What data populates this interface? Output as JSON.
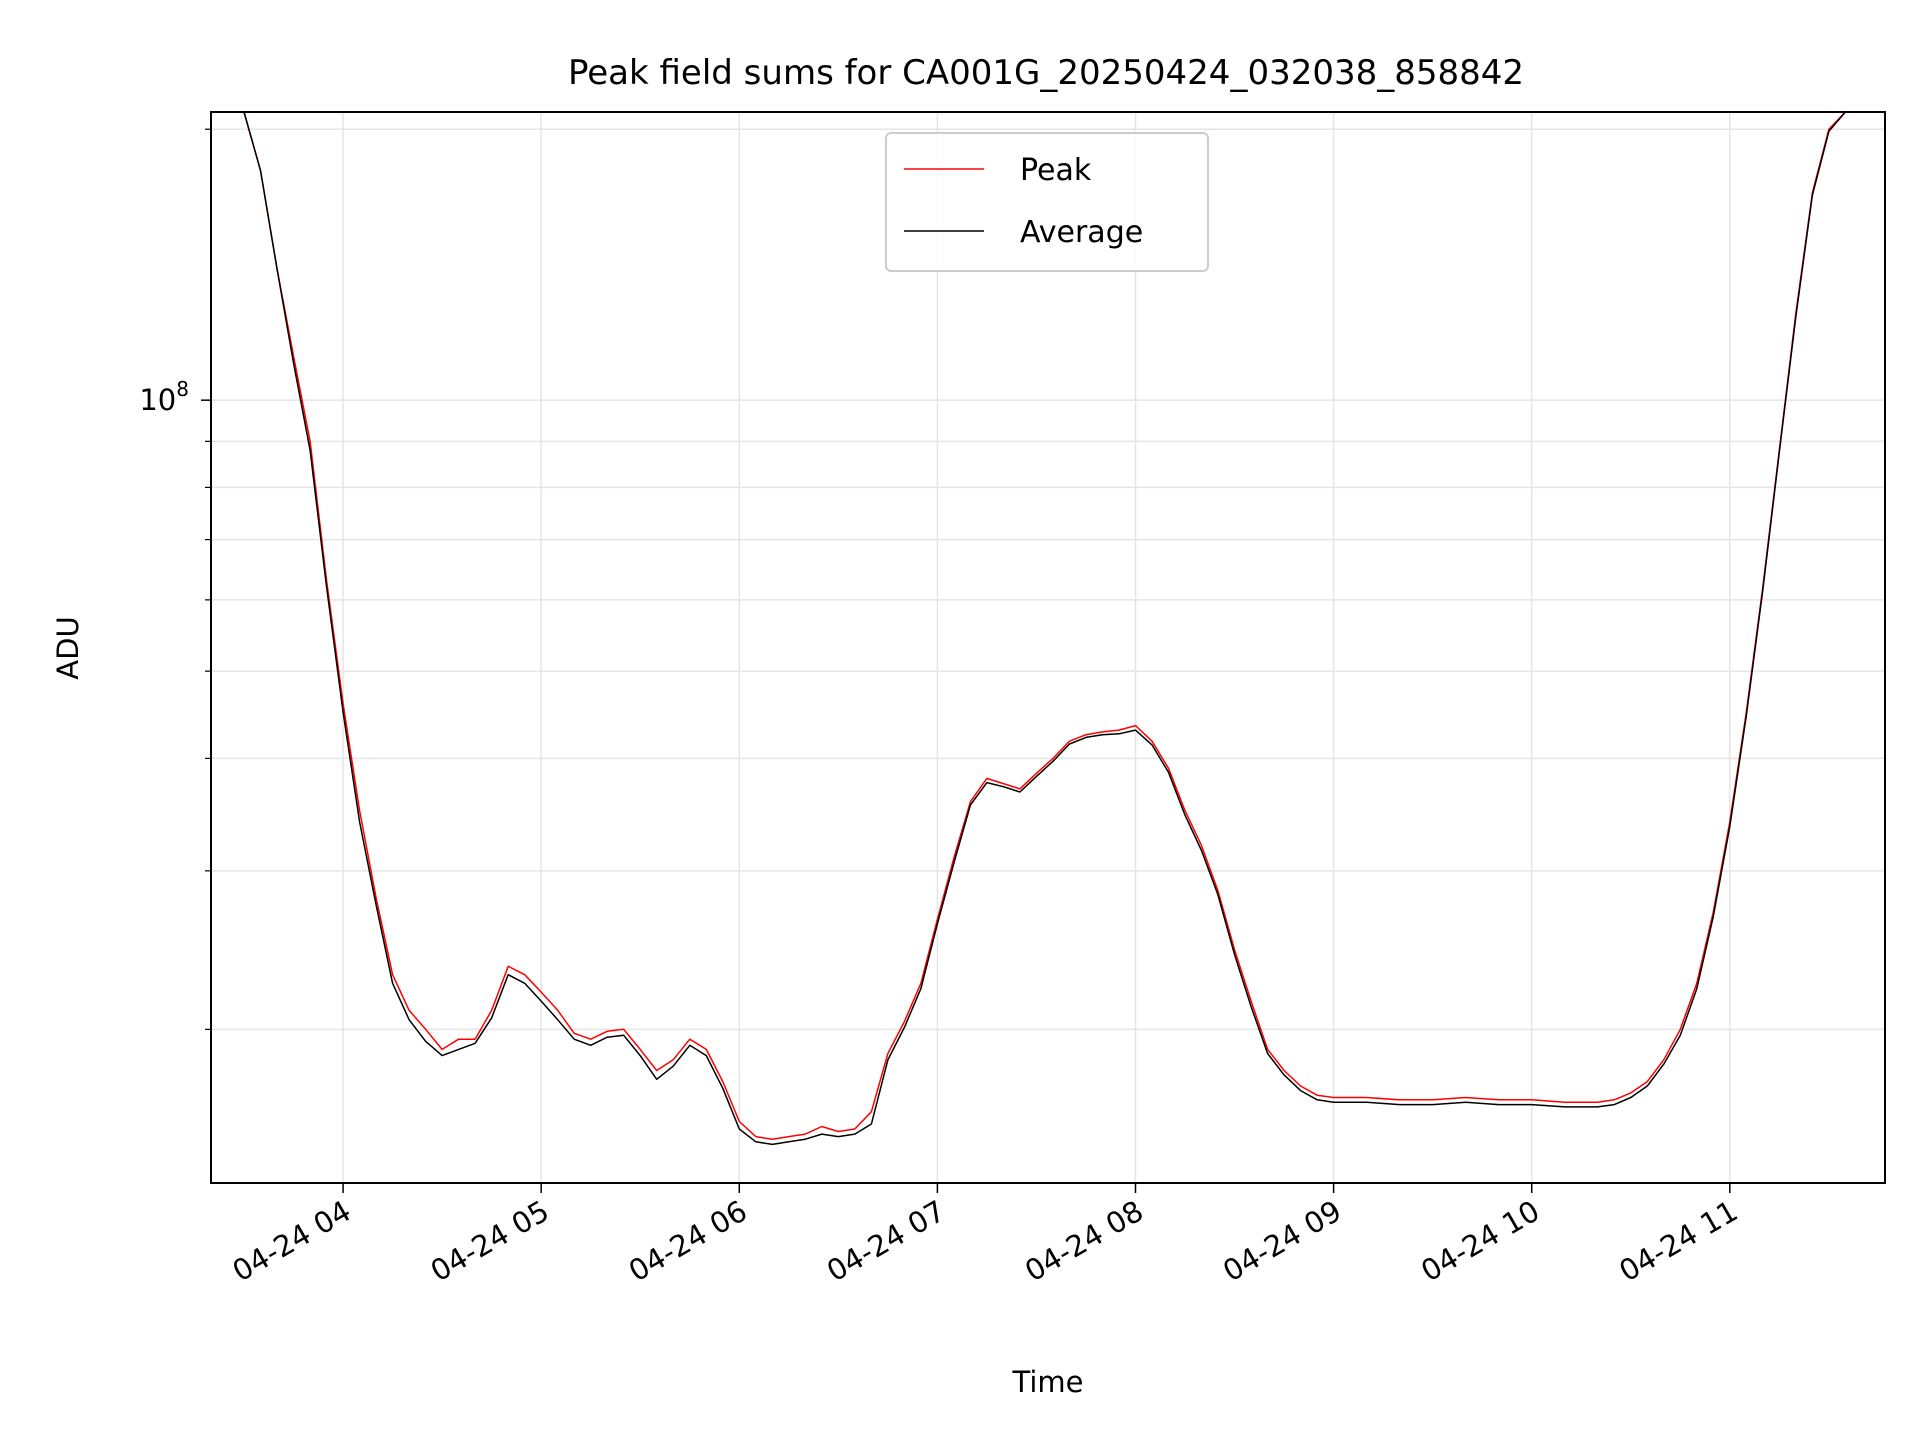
{
  "chart_data": {
    "type": "line",
    "title": "Peak field sums for CA001G_20250424_032038_858842",
    "xlabel": "Time",
    "ylabel": "ADU",
    "y_scale": "log",
    "grid": true,
    "legend_position": "top-center",
    "xlim": [
      "2025-04-24 03:20",
      "2025-04-24 11:47"
    ],
    "ylim": [
      13500000,
      209000000
    ],
    "x_ticks": [
      {
        "value": "2025-04-24 04:00",
        "label": "04-24 04"
      },
      {
        "value": "2025-04-24 05:00",
        "label": "04-24 05"
      },
      {
        "value": "2025-04-24 06:00",
        "label": "04-24 06"
      },
      {
        "value": "2025-04-24 07:00",
        "label": "04-24 07"
      },
      {
        "value": "2025-04-24 08:00",
        "label": "04-24 08"
      },
      {
        "value": "2025-04-24 09:00",
        "label": "04-24 09"
      },
      {
        "value": "2025-04-24 10:00",
        "label": "04-24 10"
      },
      {
        "value": "2025-04-24 11:00",
        "label": "04-24 11"
      }
    ],
    "y_major_ticks": [
      {
        "value": 100000000,
        "base": "10",
        "exp": "8"
      }
    ],
    "y_minor_ticks": [
      20000000,
      30000000,
      40000000,
      50000000,
      60000000,
      70000000,
      80000000,
      90000000,
      200000000
    ],
    "series": [
      {
        "name": "Peak",
        "color": "#ff0000",
        "x": [
          "2025-04-24 03:20",
          "2025-04-24 03:30",
          "2025-04-24 03:35",
          "2025-04-24 03:40",
          "2025-04-24 03:45",
          "2025-04-24 03:50",
          "2025-04-24 03:55",
          "2025-04-24 04:00",
          "2025-04-24 04:05",
          "2025-04-24 04:10",
          "2025-04-24 04:15",
          "2025-04-24 04:20",
          "2025-04-24 04:25",
          "2025-04-24 04:30",
          "2025-04-24 04:35",
          "2025-04-24 04:40",
          "2025-04-24 04:45",
          "2025-04-24 04:50",
          "2025-04-24 04:55",
          "2025-04-24 05:00",
          "2025-04-24 05:05",
          "2025-04-24 05:10",
          "2025-04-24 05:15",
          "2025-04-24 05:20",
          "2025-04-24 05:25",
          "2025-04-24 05:30",
          "2025-04-24 05:35",
          "2025-04-24 05:40",
          "2025-04-24 05:45",
          "2025-04-24 05:50",
          "2025-04-24 05:55",
          "2025-04-24 06:00",
          "2025-04-24 06:05",
          "2025-04-24 06:10",
          "2025-04-24 06:15",
          "2025-04-24 06:20",
          "2025-04-24 06:25",
          "2025-04-24 06:30",
          "2025-04-24 06:35",
          "2025-04-24 06:40",
          "2025-04-24 06:45",
          "2025-04-24 06:50",
          "2025-04-24 06:55",
          "2025-04-24 07:00",
          "2025-04-24 07:05",
          "2025-04-24 07:10",
          "2025-04-24 07:15",
          "2025-04-24 07:20",
          "2025-04-24 07:25",
          "2025-04-24 07:30",
          "2025-04-24 07:35",
          "2025-04-24 07:40",
          "2025-04-24 07:45",
          "2025-04-24 07:50",
          "2025-04-24 07:55",
          "2025-04-24 08:00",
          "2025-04-24 08:05",
          "2025-04-24 08:10",
          "2025-04-24 08:15",
          "2025-04-24 08:20",
          "2025-04-24 08:25",
          "2025-04-24 08:30",
          "2025-04-24 08:35",
          "2025-04-24 08:40",
          "2025-04-24 08:45",
          "2025-04-24 08:50",
          "2025-04-24 08:55",
          "2025-04-24 09:00",
          "2025-04-24 09:10",
          "2025-04-24 09:20",
          "2025-04-24 09:30",
          "2025-04-24 09:40",
          "2025-04-24 09:50",
          "2025-04-24 10:00",
          "2025-04-24 10:10",
          "2025-04-24 10:15",
          "2025-04-24 10:20",
          "2025-04-24 10:25",
          "2025-04-24 10:30",
          "2025-04-24 10:35",
          "2025-04-24 10:40",
          "2025-04-24 10:45",
          "2025-04-24 10:50",
          "2025-04-24 10:55",
          "2025-04-24 11:00",
          "2025-04-24 11:05",
          "2025-04-24 11:10",
          "2025-04-24 11:15",
          "2025-04-24 11:20",
          "2025-04-24 11:25",
          "2025-04-24 11:30",
          "2025-04-24 11:35",
          "2025-04-24 11:40",
          "2025-04-24 11:47"
        ],
        "values": [
          209000000,
          209000000,
          180000000,
          140000000,
          112000000,
          90000000,
          63000000,
          46000000,
          35000000,
          28000000,
          23000000,
          21000000,
          20000000,
          19000000,
          19500000,
          19500000,
          21000000,
          23500000,
          23000000,
          22000000,
          21000000,
          19800000,
          19500000,
          19900000,
          20000000,
          19000000,
          18000000,
          18500000,
          19500000,
          19000000,
          17500000,
          15800000,
          15200000,
          15100000,
          15200000,
          15300000,
          15600000,
          15400000,
          15500000,
          16200000,
          18800000,
          20400000,
          22500000,
          26500000,
          31000000,
          35800000,
          38000000,
          37500000,
          37000000,
          38500000,
          40000000,
          41800000,
          42500000,
          42800000,
          43000000,
          43500000,
          41800000,
          39000000,
          35000000,
          32000000,
          28500000,
          24500000,
          21500000,
          19000000,
          18000000,
          17300000,
          16900000,
          16800000,
          16800000,
          16700000,
          16700000,
          16800000,
          16700000,
          16700000,
          16600000,
          16600000,
          16600000,
          16700000,
          17000000,
          17500000,
          18500000,
          20000000,
          22500000,
          27000000,
          34000000,
          45000000,
          62000000,
          88000000,
          125000000,
          170000000,
          200000000,
          209000000,
          209000000,
          209000000
        ]
      },
      {
        "name": "Average",
        "color": "#000000",
        "x": [
          "2025-04-24 03:20",
          "2025-04-24 03:30",
          "2025-04-24 03:35",
          "2025-04-24 03:40",
          "2025-04-24 03:45",
          "2025-04-24 03:50",
          "2025-04-24 03:55",
          "2025-04-24 04:00",
          "2025-04-24 04:05",
          "2025-04-24 04:10",
          "2025-04-24 04:15",
          "2025-04-24 04:20",
          "2025-04-24 04:25",
          "2025-04-24 04:30",
          "2025-04-24 04:35",
          "2025-04-24 04:40",
          "2025-04-24 04:45",
          "2025-04-24 04:50",
          "2025-04-24 04:55",
          "2025-04-24 05:00",
          "2025-04-24 05:05",
          "2025-04-24 05:10",
          "2025-04-24 05:15",
          "2025-04-24 05:20",
          "2025-04-24 05:25",
          "2025-04-24 05:30",
          "2025-04-24 05:35",
          "2025-04-24 05:40",
          "2025-04-24 05:45",
          "2025-04-24 05:50",
          "2025-04-24 05:55",
          "2025-04-24 06:00",
          "2025-04-24 06:05",
          "2025-04-24 06:10",
          "2025-04-24 06:15",
          "2025-04-24 06:20",
          "2025-04-24 06:25",
          "2025-04-24 06:30",
          "2025-04-24 06:35",
          "2025-04-24 06:40",
          "2025-04-24 06:45",
          "2025-04-24 06:50",
          "2025-04-24 06:55",
          "2025-04-24 07:00",
          "2025-04-24 07:05",
          "2025-04-24 07:10",
          "2025-04-24 07:15",
          "2025-04-24 07:20",
          "2025-04-24 07:25",
          "2025-04-24 07:30",
          "2025-04-24 07:35",
          "2025-04-24 07:40",
          "2025-04-24 07:45",
          "2025-04-24 07:50",
          "2025-04-24 07:55",
          "2025-04-24 08:00",
          "2025-04-24 08:05",
          "2025-04-24 08:10",
          "2025-04-24 08:15",
          "2025-04-24 08:20",
          "2025-04-24 08:25",
          "2025-04-24 08:30",
          "2025-04-24 08:35",
          "2025-04-24 08:40",
          "2025-04-24 08:45",
          "2025-04-24 08:50",
          "2025-04-24 08:55",
          "2025-04-24 09:00",
          "2025-04-24 09:10",
          "2025-04-24 09:20",
          "2025-04-24 09:30",
          "2025-04-24 09:40",
          "2025-04-24 09:50",
          "2025-04-24 10:00",
          "2025-04-24 10:10",
          "2025-04-24 10:15",
          "2025-04-24 10:20",
          "2025-04-24 10:25",
          "2025-04-24 10:30",
          "2025-04-24 10:35",
          "2025-04-24 10:40",
          "2025-04-24 10:45",
          "2025-04-24 10:50",
          "2025-04-24 10:55",
          "2025-04-24 11:00",
          "2025-04-24 11:05",
          "2025-04-24 11:10",
          "2025-04-24 11:15",
          "2025-04-24 11:20",
          "2025-04-24 11:25",
          "2025-04-24 11:30",
          "2025-04-24 11:35",
          "2025-04-24 11:40",
          "2025-04-24 11:47"
        ],
        "values": [
          209000000,
          209000000,
          180000000,
          140000000,
          110000000,
          88000000,
          62000000,
          45000000,
          34000000,
          27500000,
          22500000,
          20500000,
          19400000,
          18700000,
          19000000,
          19300000,
          20600000,
          23000000,
          22500000,
          21500000,
          20500000,
          19500000,
          19200000,
          19600000,
          19700000,
          18700000,
          17600000,
          18200000,
          19200000,
          18700000,
          17200000,
          15500000,
          15000000,
          14900000,
          15000000,
          15100000,
          15300000,
          15200000,
          15300000,
          15700000,
          18500000,
          20100000,
          22200000,
          26200000,
          30600000,
          35500000,
          37600000,
          37200000,
          36700000,
          38200000,
          39700000,
          41500000,
          42200000,
          42500000,
          42600000,
          43000000,
          41400000,
          38600000,
          34600000,
          31600000,
          28200000,
          24200000,
          21200000,
          18800000,
          17800000,
          17100000,
          16700000,
          16600000,
          16600000,
          16500000,
          16500000,
          16600000,
          16500000,
          16500000,
          16400000,
          16400000,
          16400000,
          16500000,
          16800000,
          17300000,
          18300000,
          19700000,
          22200000,
          26700000,
          33600000,
          44600000,
          61500000,
          87500000,
          124000000,
          169000000,
          199000000,
          209000000,
          209000000,
          209000000
        ]
      }
    ]
  }
}
